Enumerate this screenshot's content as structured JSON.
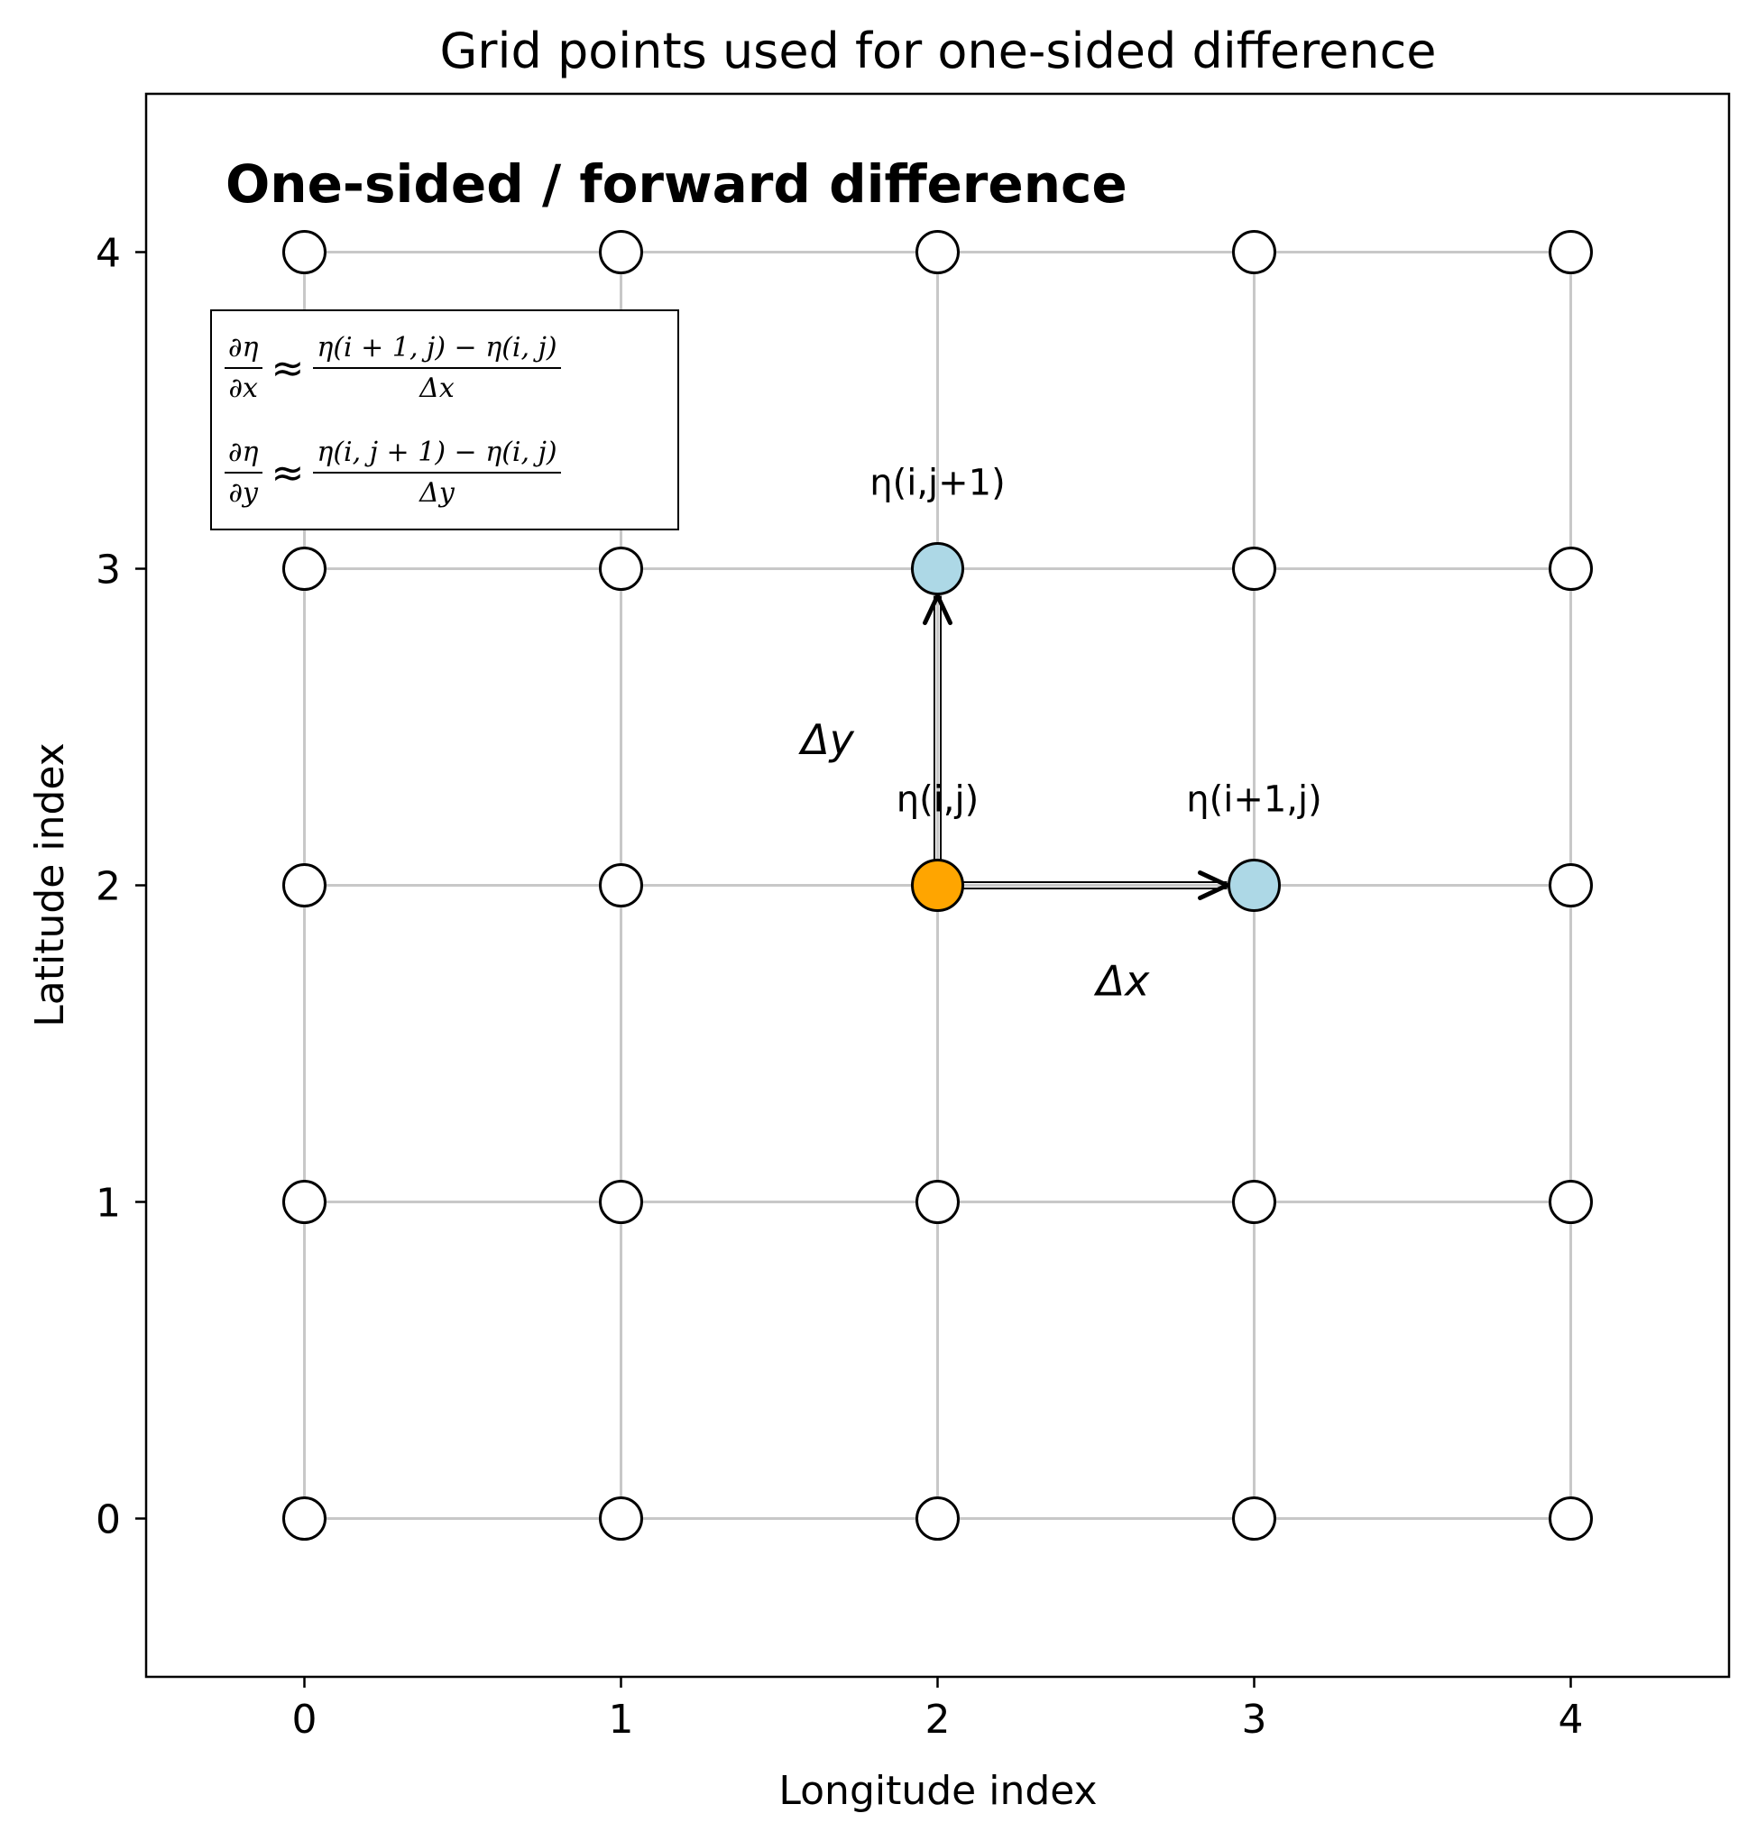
{
  "title": "Grid points used for one-sided difference",
  "subtitle": "One-sided / forward difference",
  "xlabel": "Longitude index",
  "ylabel": "Latitude index",
  "equations": {
    "dx_num": "∂η",
    "dx_den": "∂x",
    "dx_rhs_num": "η(i + 1, j) − η(i, j)",
    "dx_rhs_den": "Δx",
    "dy_num": "∂η",
    "dy_den": "∂y",
    "dy_rhs_num": "η(i, j + 1) − η(i, j)",
    "dy_rhs_den": "Δy",
    "approx": "≈"
  },
  "chart_data": {
    "type": "scatter",
    "grid": true,
    "xlim": [
      -0.5,
      4.5
    ],
    "ylim": [
      -0.5,
      4.5
    ],
    "x_ticks": [
      0,
      1,
      2,
      3,
      4
    ],
    "y_ticks": [
      0,
      1,
      2,
      3,
      4
    ],
    "nodes": {
      "i": [
        0,
        1,
        2,
        3,
        4
      ],
      "j": [
        0,
        1,
        2,
        3,
        4
      ],
      "color": "#ffffff"
    },
    "highlighted": [
      {
        "x": 2,
        "y": 2,
        "label": "η(i,j)",
        "color": "#FFA500"
      },
      {
        "x": 3,
        "y": 2,
        "label": "η(i+1,j)",
        "color": "#ADD8E6"
      },
      {
        "x": 2,
        "y": 3,
        "label": "η(i,j+1)",
        "color": "#ADD8E6"
      }
    ],
    "arrows": [
      {
        "from": [
          2,
          2
        ],
        "to": [
          3,
          2
        ],
        "label": "Δx"
      },
      {
        "from": [
          2,
          2
        ],
        "to": [
          2,
          3
        ],
        "label": "Δy"
      }
    ]
  }
}
